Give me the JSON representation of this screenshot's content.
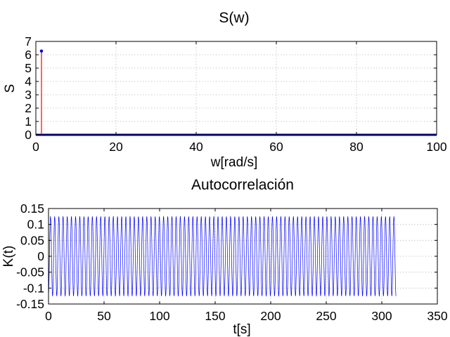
{
  "chart_data": [
    {
      "type": "stem",
      "title": "S(w)",
      "xlabel": "w[rad/s]",
      "ylabel": "S",
      "xlim": [
        0,
        100
      ],
      "ylim": [
        0,
        7
      ],
      "xticks": [
        "0",
        "20",
        "40",
        "60",
        "80",
        "100"
      ],
      "yticks": [
        "0",
        "1",
        "2",
        "3",
        "4",
        "5",
        "6",
        "7"
      ],
      "grid": true,
      "series": [
        {
          "color": "#ff0000",
          "marker_color": "#0000cc",
          "points": [
            {
              "x": 1.4,
              "y": 6.28
            }
          ]
        },
        {
          "color": "#0000cc",
          "baseline_from": 0,
          "baseline_to": 100,
          "y": 0
        }
      ]
    },
    {
      "type": "line",
      "title": "Autocorrelación",
      "xlabel": "t[s]",
      "ylabel": "K(t)",
      "xlim": [
        0,
        350
      ],
      "ylim": [
        -0.15,
        0.15
      ],
      "xticks": [
        "0",
        "50",
        "100",
        "150",
        "200",
        "250",
        "300",
        "350"
      ],
      "yticks": [
        "-0.15",
        "-0.1",
        "-0.05",
        "0",
        "0.05",
        "0.1",
        "0.15"
      ],
      "grid": true,
      "series": [
        {
          "color": "#0000ff",
          "function": "cosine",
          "amplitude": 0.125,
          "period": 3.77,
          "t_start": -2,
          "t_end": 313
        }
      ]
    }
  ]
}
